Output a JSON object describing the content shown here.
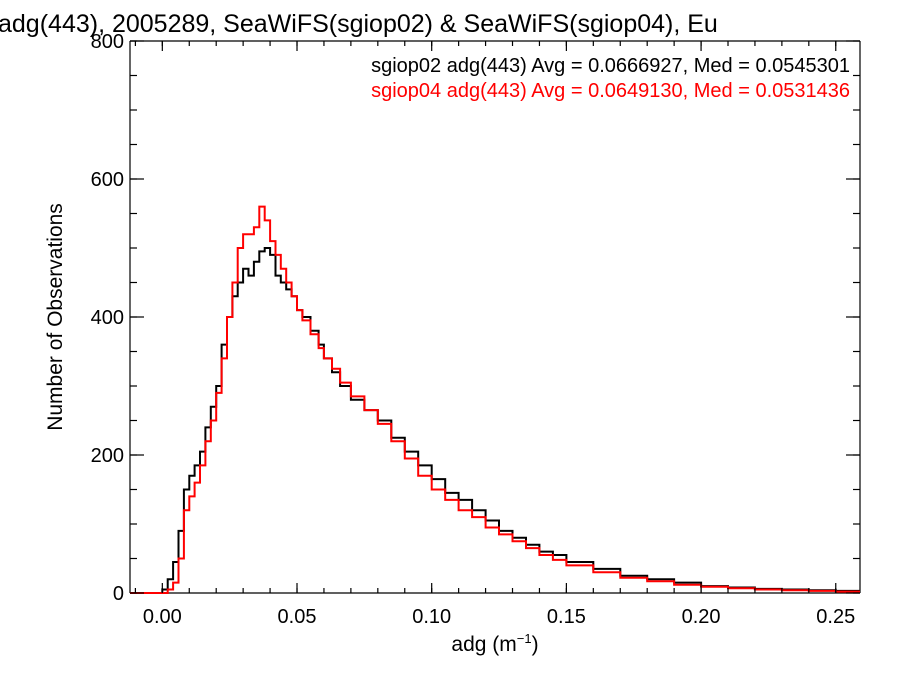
{
  "chart_data": {
    "type": "line",
    "title": "adg(443), 2005289, SeaWiFS(sgiop02) & SeaWiFS(sgiop04), Eu",
    "xlabel": "adg (m",
    "xlabel_sup": "−1",
    "xlabel_close": ")",
    "ylabel": "Number of Observations",
    "xlim": [
      -0.012,
      0.259
    ],
    "ylim": [
      0,
      800
    ],
    "x_ticks": [
      0.0,
      0.05,
      0.1,
      0.15,
      0.2,
      0.25
    ],
    "x_tick_labels": [
      "0.00",
      "0.05",
      "0.10",
      "0.15",
      "0.20",
      "0.25"
    ],
    "y_ticks": [
      0,
      200,
      400,
      600,
      800
    ],
    "y_tick_labels": [
      "0",
      "200",
      "400",
      "600",
      "800"
    ],
    "grid": false,
    "legend_position": "top-right",
    "x": [
      -0.012,
      -0.008,
      -0.004,
      0.0,
      0.002,
      0.004,
      0.006,
      0.008,
      0.01,
      0.012,
      0.014,
      0.016,
      0.018,
      0.02,
      0.022,
      0.024,
      0.026,
      0.028,
      0.03,
      0.032,
      0.034,
      0.036,
      0.038,
      0.04,
      0.042,
      0.044,
      0.046,
      0.048,
      0.05,
      0.052,
      0.055,
      0.058,
      0.06,
      0.063,
      0.066,
      0.07,
      0.075,
      0.08,
      0.085,
      0.09,
      0.095,
      0.1,
      0.105,
      0.11,
      0.115,
      0.12,
      0.125,
      0.13,
      0.135,
      0.14,
      0.145,
      0.15,
      0.16,
      0.17,
      0.18,
      0.19,
      0.2,
      0.21,
      0.22,
      0.23,
      0.24,
      0.25,
      0.259
    ],
    "series": [
      {
        "name": "sgiop02",
        "color": "#000000",
        "values": [
          0,
          0,
          0,
          5,
          20,
          45,
          90,
          150,
          170,
          185,
          205,
          240,
          270,
          300,
          360,
          400,
          430,
          450,
          470,
          460,
          480,
          495,
          500,
          490,
          460,
          450,
          440,
          430,
          410,
          400,
          380,
          360,
          340,
          320,
          300,
          280,
          265,
          250,
          225,
          205,
          185,
          165,
          145,
          135,
          120,
          105,
          90,
          80,
          70,
          60,
          55,
          45,
          35,
          25,
          20,
          15,
          10,
          8,
          6,
          5,
          4,
          3,
          3
        ]
      },
      {
        "name": "sgiop04",
        "color": "#ff0000",
        "values": [
          0,
          0,
          0,
          0,
          5,
          15,
          50,
          120,
          140,
          160,
          185,
          220,
          250,
          290,
          340,
          400,
          450,
          500,
          520,
          520,
          530,
          560,
          540,
          510,
          490,
          470,
          450,
          430,
          410,
          395,
          375,
          355,
          340,
          325,
          305,
          285,
          265,
          245,
          220,
          195,
          170,
          150,
          135,
          120,
          110,
          95,
          85,
          75,
          65,
          55,
          48,
          40,
          30,
          22,
          17,
          12,
          9,
          7,
          5,
          4,
          3,
          2,
          2
        ]
      }
    ],
    "legend": [
      {
        "text": "sgiop02 adg(443) Avg = 0.0666927, Med = 0.0545301",
        "color": "#000000"
      },
      {
        "text": "sgiop04 adg(443) Avg = 0.0649130, Med = 0.0531436",
        "color": "#ff0000"
      }
    ]
  }
}
